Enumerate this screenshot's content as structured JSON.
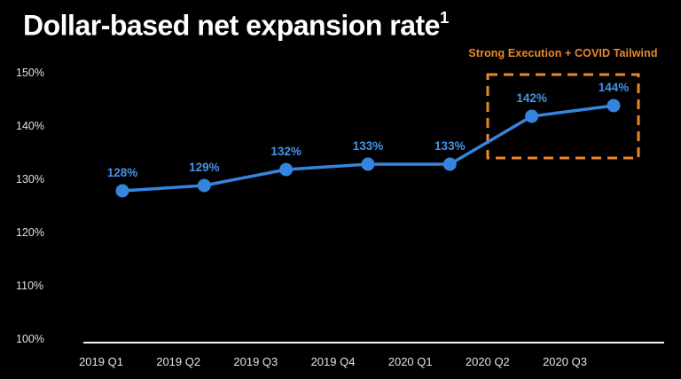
{
  "page": {
    "title": "Dollar-based net expansion rate",
    "title_superscript": "1"
  },
  "annotation": {
    "label": "Strong Execution + COVID Tailwind"
  },
  "colors": {
    "background": "#000000",
    "line_blue": "#3585de",
    "point_blue": "#3585de",
    "data_label_blue": "#4593e8",
    "annotation_orange": "#e8892e",
    "axis_text": "#e0e0e0",
    "axis_line": "#f2f2f2",
    "title_text": "#ffffff"
  },
  "chart_data": {
    "type": "line",
    "title": "Dollar-based net expansion rate",
    "categories": [
      "2019 Q1",
      "2019 Q2",
      "2019 Q3",
      "2019 Q4",
      "2020 Q1",
      "2020 Q2",
      "2020 Q3"
    ],
    "values": [
      128,
      129,
      132,
      133,
      133,
      142,
      144
    ],
    "point_labels": [
      "128%",
      "129%",
      "132%",
      "133%",
      "133%",
      "142%",
      "144%"
    ],
    "y_ticks": [
      "150%",
      "140%",
      "130%",
      "120%",
      "110%",
      "100%"
    ],
    "y_tick_values": [
      150,
      140,
      130,
      120,
      110,
      100
    ],
    "ylim": [
      100,
      150
    ],
    "xlabel": "",
    "ylabel": "",
    "grid": false,
    "legend": "none",
    "annotation": {
      "text": "Strong Execution + COVID Tailwind",
      "box_covers_categories": [
        "2020 Q2",
        "2020 Q3"
      ],
      "box_covers_values": [
        142,
        144
      ]
    }
  }
}
